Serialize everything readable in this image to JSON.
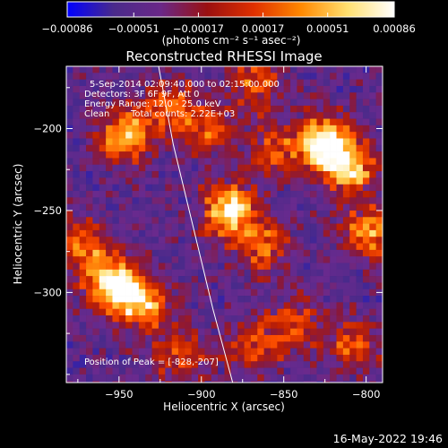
{
  "chart_data": {
    "type": "heatmap",
    "title": "Reconstructed RHESSI Image",
    "xlabel": "Heliocentric X (arcsec)",
    "ylabel": "Heliocentric Y (arcsec)",
    "xlim": [
      -982,
      -790
    ],
    "ylim": [
      -355,
      -162
    ],
    "x_ticks": [
      -950,
      -900,
      -850,
      -800
    ],
    "y_ticks": [
      -200,
      -250,
      -300
    ],
    "x_tick_labels": [
      "−950",
      "−900",
      "−850",
      "−800"
    ],
    "y_tick_labels": [
      "−200",
      "−250",
      "−300"
    ],
    "colorbar": {
      "range": [
        -0.00086,
        0.00086
      ],
      "ticks": [
        -0.00086,
        -0.00051,
        -0.00017,
        0.00017,
        0.00051,
        0.00086
      ],
      "tick_labels": [
        "−0.00086",
        "−0.00051",
        "−0.00017",
        "0.00017",
        "0.00051",
        "0.00086"
      ],
      "units_label": "(photons cm⁻² s⁻¹ asec⁻²)",
      "colormap": [
        "#0000ff",
        "#4a2a8a",
        "#6a2888",
        "#9a1010",
        "#e03000",
        "#ff8800",
        "#ffe070",
        "#ffffff"
      ]
    },
    "annotations": {
      "time_range": "5-Sep-2014 02:09:40.000 to 02:15:00.000",
      "detectors": "Detectors: 3F 6F 9F, Att 0",
      "energy_range": "Energy Range: 12.0 - 25.0 keV",
      "clean": "Clean",
      "total_counts": "Total counts: 2.22E+03",
      "peak_position": "Position of Peak = [-828,-207]"
    },
    "grid": false,
    "limb_curve": [
      [
        -926,
        -162
      ],
      [
        -917,
        -210
      ],
      [
        -905,
        -260
      ],
      [
        -893,
        -310
      ],
      [
        -881,
        -355
      ]
    ],
    "sources": [
      {
        "x": -948,
        "y": -203,
        "intensity": 0.8
      },
      {
        "x": -921,
        "y": -185,
        "intensity": 0.55
      },
      {
        "x": -897,
        "y": -198,
        "intensity": 0.45
      },
      {
        "x": -870,
        "y": -170,
        "intensity": 0.5
      },
      {
        "x": -858,
        "y": -210,
        "intensity": 0.45
      },
      {
        "x": -828,
        "y": -207,
        "intensity": 1.0
      },
      {
        "x": -812,
        "y": -222,
        "intensity": 0.8
      },
      {
        "x": -800,
        "y": -262,
        "intensity": 0.65
      },
      {
        "x": -885,
        "y": -248,
        "intensity": 0.95
      },
      {
        "x": -863,
        "y": -270,
        "intensity": 0.5
      },
      {
        "x": -956,
        "y": -292,
        "intensity": 0.95
      },
      {
        "x": -938,
        "y": -305,
        "intensity": 0.75
      },
      {
        "x": -975,
        "y": -270,
        "intensity": 0.55
      },
      {
        "x": -915,
        "y": -335,
        "intensity": 0.45
      },
      {
        "x": -870,
        "y": -330,
        "intensity": 0.4
      },
      {
        "x": -845,
        "y": -318,
        "intensity": 0.45
      },
      {
        "x": -810,
        "y": -330,
        "intensity": 0.5
      }
    ]
  },
  "footer": {
    "timestamp": "16-May-2022 19:46"
  }
}
